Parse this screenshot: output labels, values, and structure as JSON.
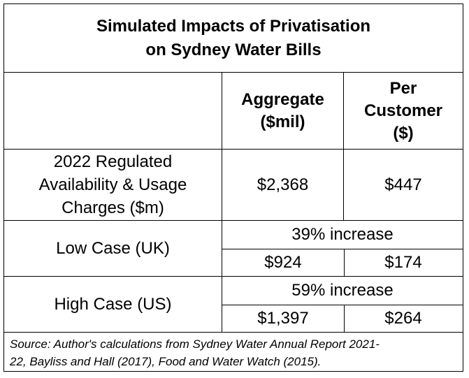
{
  "title": {
    "line1": "Simulated Impacts of Privatisation",
    "line2": "on Sydney Water Bills"
  },
  "headers": {
    "aggregate_line1": "Aggregate",
    "aggregate_line2": "($mil)",
    "per_customer_line1": "Per",
    "per_customer_line2": "Customer",
    "per_customer_line3": "($)"
  },
  "regulated": {
    "label_line1": "2022 Regulated",
    "label_line2": "Availability & Usage",
    "label_line3": "Charges ($m)",
    "aggregate": "$2,368",
    "per_customer": "$447"
  },
  "low_case": {
    "label": "Low Case (UK)",
    "increase": "39% increase",
    "aggregate": "$924",
    "per_customer": "$174"
  },
  "high_case": {
    "label": "High Case (US)",
    "increase": "59% increase",
    "aggregate": "$1,397",
    "per_customer": "$264"
  },
  "source": {
    "line1": "Source: Author's calculations from Sydney Water Annual Report 2021-",
    "line2": "22, Bayliss and Hall (2017), Food and Water Watch (2015)."
  }
}
